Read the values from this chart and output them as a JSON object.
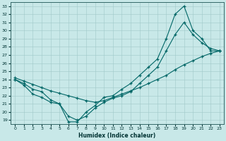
{
  "xlabel": "Humidex (Indice chaleur)",
  "xlim": [
    -0.5,
    23.5
  ],
  "ylim": [
    18.5,
    33.5
  ],
  "xticks": [
    0,
    1,
    2,
    3,
    4,
    5,
    6,
    7,
    8,
    9,
    10,
    11,
    12,
    13,
    14,
    15,
    16,
    17,
    18,
    19,
    20,
    21,
    22,
    23
  ],
  "yticks": [
    19,
    20,
    21,
    22,
    23,
    24,
    25,
    26,
    27,
    28,
    29,
    30,
    31,
    32,
    33
  ],
  "bg_color": "#c8e8e8",
  "line_color": "#006666",
  "grid_color": "#a0c8c8",
  "line1_x": [
    0,
    1,
    2,
    3,
    4,
    5,
    6,
    7,
    8,
    9,
    10,
    11,
    12,
    13,
    14,
    15,
    16,
    17,
    18,
    19,
    20,
    21,
    22,
    23
  ],
  "line1_y": [
    24.0,
    23.5,
    22.8,
    22.5,
    21.5,
    21.0,
    18.8,
    18.8,
    20.0,
    20.8,
    21.8,
    22.0,
    22.8,
    23.5,
    24.5,
    25.5,
    26.5,
    29.0,
    32.0,
    33.0,
    30.0,
    29.0,
    27.5,
    27.5
  ],
  "line2_x": [
    0,
    1,
    2,
    3,
    4,
    5,
    6,
    7,
    8,
    9,
    10,
    11,
    12,
    13,
    14,
    15,
    16,
    17,
    18,
    19,
    20,
    21,
    22,
    23
  ],
  "line2_y": [
    24.0,
    23.3,
    22.2,
    21.8,
    21.2,
    21.0,
    19.5,
    19.0,
    19.5,
    20.5,
    21.2,
    21.7,
    22.0,
    22.5,
    23.5,
    24.5,
    25.5,
    27.5,
    29.5,
    31.0,
    29.5,
    28.5,
    27.8,
    27.5
  ],
  "line3_x": [
    0,
    1,
    2,
    3,
    4,
    5,
    6,
    7,
    8,
    9,
    10,
    11,
    12,
    13,
    14,
    15,
    16,
    17,
    18,
    19,
    20,
    21,
    22,
    23
  ],
  "line3_y": [
    24.2,
    23.8,
    23.4,
    23.0,
    22.6,
    22.3,
    22.0,
    21.7,
    21.4,
    21.2,
    21.4,
    21.8,
    22.2,
    22.6,
    23.0,
    23.5,
    24.0,
    24.5,
    25.2,
    25.8,
    26.3,
    26.8,
    27.2,
    27.5
  ]
}
